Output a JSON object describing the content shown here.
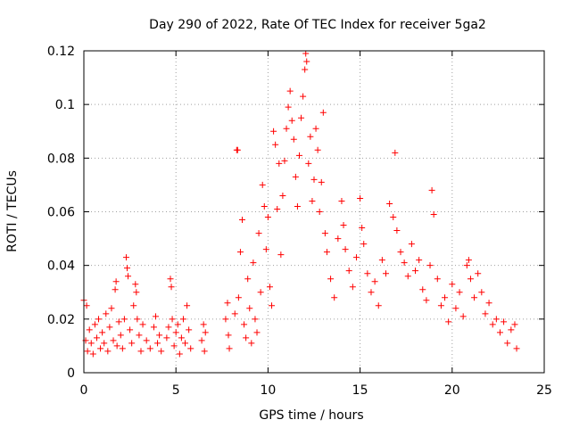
{
  "chart_data": {
    "type": "scatter",
    "title": "Day 290 of 2022, Rate Of TEC Index for receiver 5ga2",
    "xlabel": "GPS time / hours",
    "ylabel": "ROTI / TECUs",
    "xlim": [
      0,
      25
    ],
    "ylim": [
      0,
      0.12
    ],
    "x_ticks": [
      "0",
      "5",
      "10",
      "15",
      "20",
      "25"
    ],
    "y_ticks": [
      "0",
      "0.02",
      "0.04",
      "0.06",
      "0.08",
      "0.1",
      "0.12"
    ],
    "grid": true,
    "marker": "plus",
    "color": "#ff0000",
    "series": [
      {
        "points": [
          [
            0.0,
            0.027
          ],
          [
            0.1,
            0.012
          ],
          [
            0.15,
            0.025
          ],
          [
            0.2,
            0.008
          ],
          [
            0.3,
            0.016
          ],
          [
            0.4,
            0.011
          ],
          [
            0.5,
            0.007
          ],
          [
            0.6,
            0.018
          ],
          [
            0.7,
            0.013
          ],
          [
            0.8,
            0.02
          ],
          [
            0.9,
            0.009
          ],
          [
            1.0,
            0.015
          ],
          [
            1.1,
            0.011
          ],
          [
            1.2,
            0.022
          ],
          [
            1.3,
            0.008
          ],
          [
            1.4,
            0.017
          ],
          [
            1.5,
            0.024
          ],
          [
            1.6,
            0.012
          ],
          [
            1.7,
            0.031
          ],
          [
            1.75,
            0.034
          ],
          [
            1.8,
            0.01
          ],
          [
            1.9,
            0.019
          ],
          [
            2.0,
            0.014
          ],
          [
            2.1,
            0.009
          ],
          [
            2.2,
            0.02
          ],
          [
            2.3,
            0.043
          ],
          [
            2.35,
            0.039
          ],
          [
            2.4,
            0.036
          ],
          [
            2.5,
            0.016
          ],
          [
            2.6,
            0.011
          ],
          [
            2.7,
            0.025
          ],
          [
            2.8,
            0.033
          ],
          [
            2.85,
            0.03
          ],
          [
            2.9,
            0.02
          ],
          [
            3.0,
            0.014
          ],
          [
            3.1,
            0.008
          ],
          [
            3.2,
            0.018
          ],
          [
            3.4,
            0.012
          ],
          [
            3.6,
            0.009
          ],
          [
            3.8,
            0.017
          ],
          [
            3.9,
            0.021
          ],
          [
            4.0,
            0.011
          ],
          [
            4.1,
            0.014
          ],
          [
            4.2,
            0.008
          ],
          [
            4.5,
            0.013
          ],
          [
            4.6,
            0.017
          ],
          [
            4.7,
            0.035
          ],
          [
            4.75,
            0.032
          ],
          [
            4.8,
            0.02
          ],
          [
            4.9,
            0.01
          ],
          [
            5.0,
            0.015
          ],
          [
            5.1,
            0.018
          ],
          [
            5.2,
            0.007
          ],
          [
            5.3,
            0.013
          ],
          [
            5.4,
            0.02
          ],
          [
            5.5,
            0.011
          ],
          [
            5.6,
            0.025
          ],
          [
            5.7,
            0.016
          ],
          [
            5.8,
            0.009
          ],
          [
            6.4,
            0.012
          ],
          [
            6.5,
            0.018
          ],
          [
            6.55,
            0.008
          ],
          [
            6.6,
            0.015
          ],
          [
            7.7,
            0.02
          ],
          [
            7.8,
            0.026
          ],
          [
            7.85,
            0.014
          ],
          [
            7.9,
            0.009
          ],
          [
            8.2,
            0.022
          ],
          [
            8.3,
            0.083
          ],
          [
            8.35,
            0.083
          ],
          [
            8.4,
            0.028
          ],
          [
            8.5,
            0.045
          ],
          [
            8.6,
            0.057
          ],
          [
            8.7,
            0.018
          ],
          [
            8.8,
            0.013
          ],
          [
            8.9,
            0.035
          ],
          [
            9.0,
            0.024
          ],
          [
            9.1,
            0.011
          ],
          [
            9.2,
            0.041
          ],
          [
            9.3,
            0.02
          ],
          [
            9.4,
            0.015
          ],
          [
            9.5,
            0.052
          ],
          [
            9.6,
            0.03
          ],
          [
            9.7,
            0.07
          ],
          [
            9.8,
            0.062
          ],
          [
            9.9,
            0.046
          ],
          [
            10.0,
            0.058
          ],
          [
            10.1,
            0.032
          ],
          [
            10.2,
            0.025
          ],
          [
            10.3,
            0.09
          ],
          [
            10.4,
            0.085
          ],
          [
            10.5,
            0.061
          ],
          [
            10.6,
            0.078
          ],
          [
            10.7,
            0.044
          ],
          [
            10.8,
            0.066
          ],
          [
            10.9,
            0.079
          ],
          [
            11.0,
            0.091
          ],
          [
            11.1,
            0.099
          ],
          [
            11.2,
            0.105
          ],
          [
            11.3,
            0.094
          ],
          [
            11.4,
            0.087
          ],
          [
            11.5,
            0.073
          ],
          [
            11.6,
            0.062
          ],
          [
            11.7,
            0.081
          ],
          [
            11.8,
            0.095
          ],
          [
            11.9,
            0.103
          ],
          [
            12.0,
            0.113
          ],
          [
            12.05,
            0.119
          ],
          [
            12.1,
            0.116
          ],
          [
            12.2,
            0.078
          ],
          [
            12.3,
            0.088
          ],
          [
            12.4,
            0.064
          ],
          [
            12.5,
            0.072
          ],
          [
            12.6,
            0.091
          ],
          [
            12.7,
            0.083
          ],
          [
            12.8,
            0.06
          ],
          [
            12.9,
            0.071
          ],
          [
            13.0,
            0.097
          ],
          [
            13.1,
            0.052
          ],
          [
            13.2,
            0.045
          ],
          [
            13.4,
            0.035
          ],
          [
            13.6,
            0.028
          ],
          [
            13.8,
            0.05
          ],
          [
            14.0,
            0.064
          ],
          [
            14.1,
            0.055
          ],
          [
            14.2,
            0.046
          ],
          [
            14.4,
            0.038
          ],
          [
            14.6,
            0.032
          ],
          [
            14.8,
            0.043
          ],
          [
            15.0,
            0.065
          ],
          [
            15.1,
            0.054
          ],
          [
            15.2,
            0.048
          ],
          [
            15.4,
            0.037
          ],
          [
            15.6,
            0.03
          ],
          [
            15.8,
            0.034
          ],
          [
            16.0,
            0.025
          ],
          [
            16.2,
            0.042
          ],
          [
            16.4,
            0.037
          ],
          [
            16.6,
            0.063
          ],
          [
            16.8,
            0.058
          ],
          [
            16.9,
            0.082
          ],
          [
            17.0,
            0.053
          ],
          [
            17.2,
            0.045
          ],
          [
            17.4,
            0.041
          ],
          [
            17.6,
            0.036
          ],
          [
            17.8,
            0.048
          ],
          [
            18.0,
            0.038
          ],
          [
            18.2,
            0.042
          ],
          [
            18.4,
            0.031
          ],
          [
            18.6,
            0.027
          ],
          [
            18.8,
            0.04
          ],
          [
            18.9,
            0.068
          ],
          [
            19.0,
            0.059
          ],
          [
            19.2,
            0.035
          ],
          [
            19.4,
            0.025
          ],
          [
            19.6,
            0.028
          ],
          [
            19.8,
            0.019
          ],
          [
            20.0,
            0.033
          ],
          [
            20.2,
            0.024
          ],
          [
            20.4,
            0.03
          ],
          [
            20.6,
            0.021
          ],
          [
            20.8,
            0.04
          ],
          [
            20.9,
            0.042
          ],
          [
            21.0,
            0.035
          ],
          [
            21.2,
            0.028
          ],
          [
            21.4,
            0.037
          ],
          [
            21.6,
            0.03
          ],
          [
            21.8,
            0.022
          ],
          [
            22.0,
            0.026
          ],
          [
            22.2,
            0.018
          ],
          [
            22.4,
            0.02
          ],
          [
            22.6,
            0.015
          ],
          [
            22.8,
            0.019
          ],
          [
            23.0,
            0.011
          ],
          [
            23.2,
            0.016
          ],
          [
            23.4,
            0.018
          ],
          [
            23.5,
            0.009
          ]
        ]
      }
    ]
  }
}
